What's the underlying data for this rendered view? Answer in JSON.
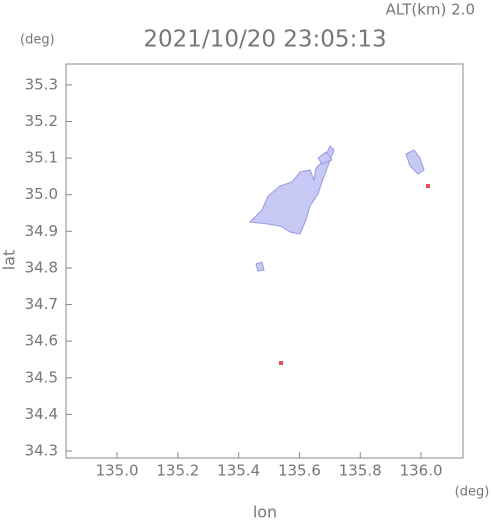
{
  "chart_data": {
    "type": "map",
    "title": "2021/10/20 23:05:13",
    "subtitle": "ALT(km) 2.0",
    "x_label": "lon",
    "y_label": "lat",
    "x_unit": "(deg)",
    "y_unit": "(deg)",
    "xlim": [
      134.832,
      136.138
    ],
    "ylim": [
      34.281,
      35.357
    ],
    "xticks": [
      {
        "value": 135,
        "label": "135.0"
      },
      135.2,
      135.4,
      135.6,
      135.8,
      {
        "value": 136,
        "label": "136.0"
      }
    ],
    "yticks": [
      34.3,
      34.4,
      34.5,
      34.6,
      34.7,
      34.8,
      34.9,
      {
        "value": 35,
        "label": "35.0"
      },
      35.1,
      35.2,
      35.3
    ]
  }
}
